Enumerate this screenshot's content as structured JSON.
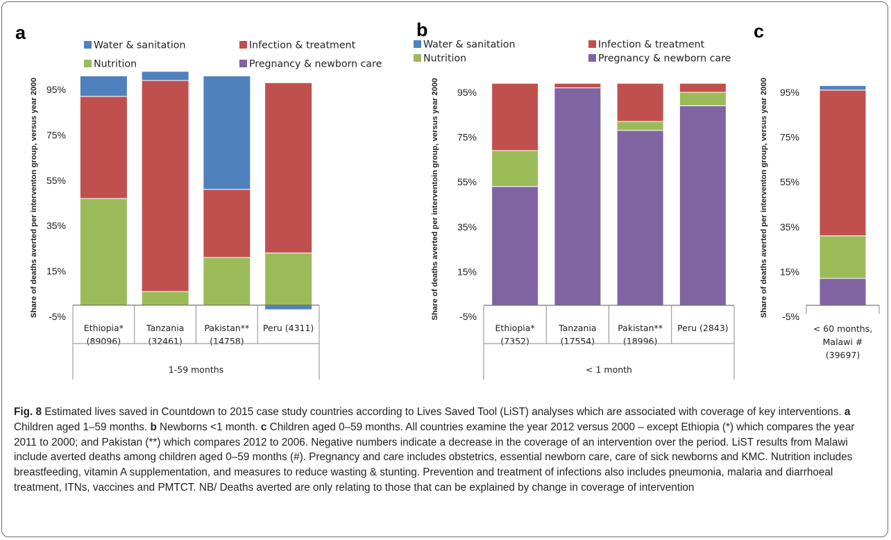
{
  "colors": {
    "water_sanitation": "#4f81bd",
    "infection_treatment": "#c0504d",
    "nutrition": "#9bbb59",
    "pregnancy_newborn": "#8064a2"
  },
  "legend": {
    "water_sanitation": "Water & sanitation",
    "infection_treatment": "Infection & treatment",
    "nutrition": "Nutrition",
    "pregnancy_newborn": "Pregnancy & newborn care"
  },
  "caption": {
    "label": "Fig. 8",
    "text": " Estimated lives saved in Countdown to 2015 case study countries according to Lives Saved Tool (LiST) analyses which are associated with coverage of key interventions. ",
    "part_a_letter": "a",
    "part_a_text": " Children aged 1–59 months. ",
    "part_b_letter": "b",
    "part_b_text": " Newborns <1 month. ",
    "part_c_letter": "c",
    "part_c_text": " Children aged 0–59 months. All countries examine the year 2012 versus 2000 – except Ethiopia (*) which compares the year 2011 to 2000; and Pakistan (**) which compares 2012 to 2006. Negative numbers indicate a decrease in the coverage of an intervention over the period. LiST results from Malawi include averted deaths among children aged 0–59 months (#). Pregnancy and care includes obstetrics, essential newborn care, care of sick newborns and KMC. Nutrition includes breastfeeding, vitamin A supplementation, and measures to reduce wasting & stunting. Prevention and treatment of infections also includes pneumonia, malaria and diarrhoeal treatment, ITNs, vaccines and PMTCT. NB/ Deaths averted are only relating to those that can be explained by change in coverage of intervention"
  },
  "chart_data": [
    {
      "panel": "a",
      "type": "bar",
      "stacked": true,
      "ylabel": "Share of deaths averted per interventon group, versus year 2000",
      "ylim": [
        -5,
        100
      ],
      "yticks": [
        "-5%",
        "15%",
        "35%",
        "55%",
        "75%",
        "95%"
      ],
      "group_label": "1-59 months",
      "categories": [
        [
          "Ethiopia*",
          "(89096)"
        ],
        [
          "Tanzania",
          "(32461)"
        ],
        [
          "Pakistan**",
          "(14758)"
        ],
        [
          "Peru (4311)"
        ]
      ],
      "series": [
        {
          "name": "Water & sanitation",
          "key": "water_sanitation",
          "values": [
            9,
            4,
            50,
            -2
          ]
        },
        {
          "name": "Infection & treatment",
          "key": "infection_treatment",
          "values": [
            45,
            93,
            30,
            75
          ]
        },
        {
          "name": "Nutrition",
          "key": "nutrition",
          "values": [
            47,
            6,
            21,
            23
          ]
        },
        {
          "name": "Pregnancy & newborn care",
          "key": "pregnancy_newborn",
          "values": [
            0,
            0,
            0,
            0
          ]
        }
      ],
      "legend_position": "top"
    },
    {
      "panel": "b",
      "type": "bar",
      "stacked": true,
      "ylabel": "Share of deaths averted per interventoin group, versus year 2000",
      "ylim": [
        -5,
        100
      ],
      "yticks": [
        "-5%",
        "15%",
        "35%",
        "55%",
        "75%",
        "95%"
      ],
      "group_label": "< 1 month",
      "categories": [
        [
          "Ethiopia*",
          "(7352)"
        ],
        [
          "Tanzania",
          "(17554)"
        ],
        [
          "Pakistan**",
          "(18996)"
        ],
        [
          "Peru (2843)"
        ]
      ],
      "series": [
        {
          "name": "Water & sanitation",
          "key": "water_sanitation",
          "values": [
            0,
            0,
            0,
            0
          ]
        },
        {
          "name": "Infection & treatment",
          "key": "infection_treatment",
          "values": [
            30,
            2,
            17,
            4
          ]
        },
        {
          "name": "Nutrition",
          "key": "nutrition",
          "values": [
            16,
            0,
            4,
            6
          ]
        },
        {
          "name": "Pregnancy & newborn care",
          "key": "pregnancy_newborn",
          "values": [
            53,
            97,
            78,
            89
          ]
        }
      ],
      "legend_position": "top"
    },
    {
      "panel": "c",
      "type": "bar",
      "stacked": true,
      "ylabel": "Share of deaths averted per interventon group, versus year 2000",
      "ylim": [
        -5,
        100
      ],
      "yticks": [
        "-5%",
        "15%",
        "35%",
        "55%",
        "75%",
        "95%"
      ],
      "group_label": "",
      "categories": [
        [
          "< 60 months,",
          "Malawi #",
          "(39697)"
        ]
      ],
      "series": [
        {
          "name": "Water & sanitation",
          "key": "water_sanitation",
          "values": [
            2
          ]
        },
        {
          "name": "Infection & treatment",
          "key": "infection_treatment",
          "values": [
            65
          ]
        },
        {
          "name": "Nutrition",
          "key": "nutrition",
          "values": [
            19
          ]
        },
        {
          "name": "Pregnancy & newborn care",
          "key": "pregnancy_newborn",
          "values": [
            12
          ]
        }
      ]
    }
  ]
}
